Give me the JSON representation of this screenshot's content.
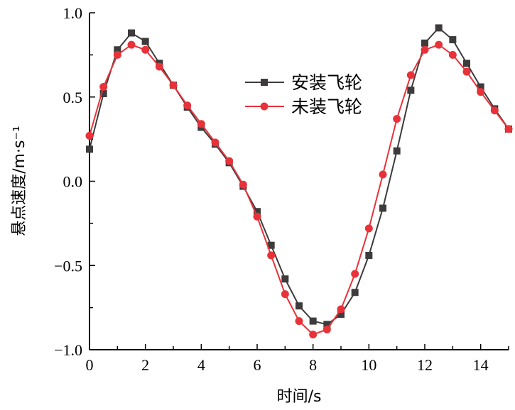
{
  "chart_data": {
    "type": "line",
    "title": "",
    "xlabel": "时间/s",
    "ylabel": "悬点速度/m·s⁻¹",
    "xlim": [
      0,
      15
    ],
    "ylim": [
      -1.0,
      1.0
    ],
    "xticks": [
      0,
      2,
      4,
      6,
      8,
      10,
      12,
      14
    ],
    "xtick_labels": [
      "0",
      "2",
      "4",
      "6",
      "8",
      "10",
      "12",
      "14"
    ],
    "yticks": [
      1.0,
      0.5,
      0.0,
      -0.5,
      -1.0
    ],
    "ytick_labels": [
      "1.0",
      "0.5",
      "0.0",
      "−0.5",
      "−1.0"
    ],
    "grid": false,
    "legend_position": "upper-center",
    "x": [
      0,
      0.5,
      1,
      1.5,
      2,
      2.5,
      3,
      3.5,
      4,
      4.5,
      5,
      5.5,
      6,
      6.5,
      7,
      7.5,
      8,
      8.5,
      9,
      9.5,
      10,
      10.5,
      11,
      11.5,
      12,
      12.5,
      13,
      13.5,
      14,
      14.5,
      15
    ],
    "series": [
      {
        "name": "安装飞轮",
        "color": "#3d3b3b",
        "marker": "square",
        "values": [
          0.19,
          0.52,
          0.78,
          0.88,
          0.83,
          0.7,
          0.57,
          0.44,
          0.32,
          0.22,
          0.11,
          -0.03,
          -0.18,
          -0.38,
          -0.58,
          -0.74,
          -0.83,
          -0.85,
          -0.79,
          -0.66,
          -0.44,
          -0.16,
          0.18,
          0.54,
          0.82,
          0.91,
          0.84,
          0.7,
          0.56,
          0.43,
          0.31
        ]
      },
      {
        "name": "未装飞轮",
        "color": "#e8323a",
        "marker": "circle",
        "values": [
          0.27,
          0.56,
          0.75,
          0.81,
          0.78,
          0.68,
          0.57,
          0.45,
          0.34,
          0.23,
          0.12,
          -0.02,
          -0.21,
          -0.44,
          -0.67,
          -0.83,
          -0.91,
          -0.88,
          -0.76,
          -0.55,
          -0.28,
          0.04,
          0.37,
          0.63,
          0.78,
          0.81,
          0.75,
          0.65,
          0.53,
          0.42,
          0.31
        ]
      }
    ]
  }
}
